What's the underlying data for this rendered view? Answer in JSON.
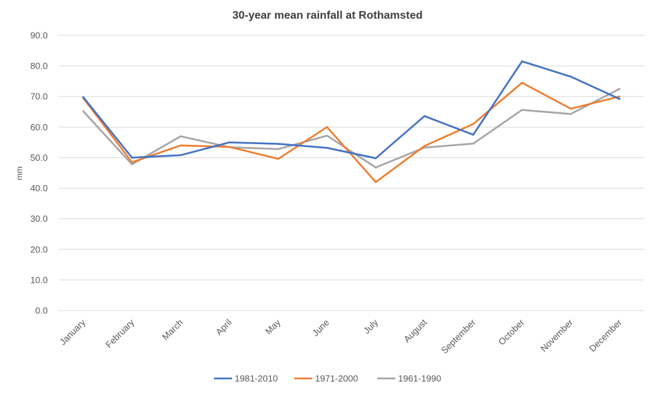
{
  "chart_data": {
    "type": "line",
    "title": "30-year mean rainfall at Rothamsted",
    "ylabel": "mm",
    "xlabel": "",
    "ylim": [
      0,
      90
    ],
    "ytick_step": 10,
    "ytick_labels": [
      "0.0",
      "10.0",
      "20.0",
      "30.0",
      "40.0",
      "50.0",
      "60.0",
      "70.0",
      "80.0",
      "90.0"
    ],
    "grid": true,
    "legend_position": "bottom",
    "categories": [
      "January",
      "February",
      "March",
      "April",
      "May",
      "June",
      "July",
      "August",
      "September",
      "October",
      "November",
      "December"
    ],
    "series": [
      {
        "name": "1981-2010",
        "color": "#4472c4",
        "values": [
          69.8,
          50.0,
          50.8,
          55.0,
          54.5,
          53.2,
          49.8,
          63.6,
          57.5,
          81.5,
          76.5,
          69.2
        ]
      },
      {
        "name": "1971-2000",
        "color": "#ed7d31",
        "values": [
          69.5,
          48.5,
          54.0,
          53.5,
          49.6,
          60.0,
          42.0,
          53.8,
          61.0,
          74.5,
          66.0,
          70.0
        ]
      },
      {
        "name": "1961-1990",
        "color": "#a5a5a5",
        "values": [
          65.2,
          47.8,
          57.0,
          53.4,
          52.8,
          57.2,
          46.8,
          53.3,
          54.6,
          65.6,
          64.3,
          72.5
        ]
      }
    ]
  }
}
